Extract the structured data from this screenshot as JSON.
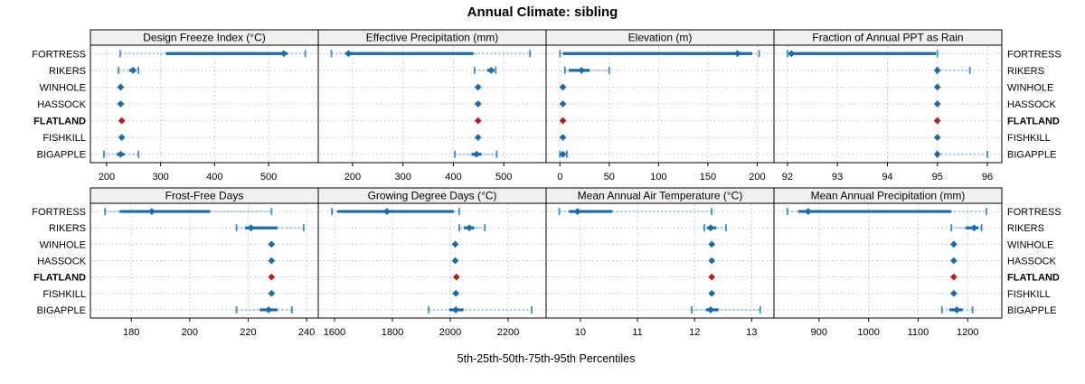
{
  "figure": {
    "title": "Annual Climate: sibling",
    "xlabel": "5th-25th-50th-75th-95th Percentiles"
  },
  "chart_data": {
    "type": "dotplot-trellis",
    "title": "Annual Climate: sibling",
    "xlabel": "5th-25th-50th-75th-95th Percentiles",
    "percentiles": [
      "5th",
      "25th",
      "50th",
      "75th",
      "95th"
    ],
    "sites": [
      "FORTRESS",
      "RIKERS",
      "WINHOLE",
      "HASSOCK",
      "FLATLAND",
      "FISHKILL",
      "BIGAPPLE"
    ],
    "highlight_site": "FLATLAND",
    "layout": {
      "rows": 2,
      "cols": 4,
      "grid": "dotted",
      "legend": "none",
      "site_labels": "both-sides"
    },
    "colors": {
      "marker": "#1a6ba6",
      "highlight_marker": "#b5201f",
      "box": "#1a6ba6",
      "whisker": "#a6cbe3",
      "cap": "#3d8cc4",
      "grid": "#bfbfbf",
      "border": "#000000",
      "header_bg": "#f0f0f0",
      "text": "#000000"
    },
    "panels": [
      {
        "title": "Design Freeze Index (°C)",
        "xlim": [
          170,
          592
        ],
        "ticks": [
          200,
          300,
          400,
          500
        ],
        "values": {
          "FORTRESS": [
            225,
            310,
            528,
            535,
            568
          ],
          "RIKERS": [
            222,
            242,
            249,
            254,
            259
          ],
          "WINHOLE": [
            223,
            225,
            226,
            227,
            229
          ],
          "HASSOCK": [
            223,
            225,
            226,
            227,
            229
          ],
          "FLATLAND": [
            228,
            228,
            228,
            228,
            228
          ],
          "FISHKILL": [
            225,
            227,
            228,
            229,
            231
          ],
          "BIGAPPLE": [
            195,
            219,
            226,
            233,
            259
          ]
        }
      },
      {
        "title": "Effective Precipitation (mm)",
        "xlim": [
          132,
          584
        ],
        "ticks": [
          200,
          300,
          400,
          500
        ],
        "values": {
          "FORTRESS": [
            158,
            186,
            192,
            440,
            552
          ],
          "RIKERS": [
            442,
            467,
            475,
            481,
            484
          ],
          "WINHOLE": [
            446,
            448,
            449,
            450,
            452
          ],
          "HASSOCK": [
            446,
            448,
            449,
            450,
            452
          ],
          "FLATLAND": [
            449,
            449,
            449,
            449,
            449
          ],
          "FISHKILL": [
            446,
            448,
            449,
            450,
            452
          ],
          "BIGAPPLE": [
            403,
            436,
            446,
            456,
            486
          ]
        }
      },
      {
        "title": "Elevation (m)",
        "xlim": [
          -14,
          217
        ],
        "ticks": [
          0,
          50,
          100,
          150,
          200
        ],
        "values": {
          "FORTRESS": [
            0,
            3,
            180,
            195,
            202
          ],
          "RIKERS": [
            5,
            9,
            22,
            30,
            50
          ],
          "WINHOLE": [
            2,
            2.5,
            3,
            3.5,
            4
          ],
          "HASSOCK": [
            2,
            2.5,
            3,
            3.5,
            4
          ],
          "FLATLAND": [
            3,
            3,
            3,
            3,
            3
          ],
          "FISHKILL": [
            2,
            2.5,
            3,
            3.5,
            4
          ],
          "BIGAPPLE": [
            0,
            1,
            3,
            5,
            7
          ]
        }
      },
      {
        "title": "Fraction of Annual PPT as Rain",
        "xlim": [
          91.73,
          96.29
        ],
        "ticks": [
          92,
          93,
          94,
          95,
          96
        ],
        "values": {
          "FORTRESS": [
            92.0,
            92.03,
            92.08,
            94.97,
            95.0
          ],
          "RIKERS": [
            94.99,
            94.995,
            95.0,
            95.01,
            95.65
          ],
          "WINHOLE": [
            95,
            95,
            95,
            95,
            95
          ],
          "HASSOCK": [
            95,
            95,
            95,
            95,
            95
          ],
          "FLATLAND": [
            95,
            95,
            95,
            95,
            95
          ],
          "FISHKILL": [
            95,
            95,
            95,
            95,
            95
          ],
          "BIGAPPLE": [
            94.99,
            94.995,
            95.0,
            95.02,
            96.0
          ]
        }
      },
      {
        "title": "Frost-Free Days",
        "xlim": [
          166,
          244
        ],
        "ticks": [
          180,
          200,
          220,
          240
        ],
        "values": {
          "FORTRESS": [
            171,
            176,
            187,
            207,
            228
          ],
          "RIKERS": [
            216,
            219,
            221,
            230,
            239
          ],
          "WINHOLE": [
            227.5,
            227.8,
            228,
            228.2,
            228.5
          ],
          "HASSOCK": [
            227.5,
            227.8,
            228,
            228.2,
            228.5
          ],
          "FLATLAND": [
            228,
            228,
            228,
            228,
            228
          ],
          "FISHKILL": [
            227.5,
            227.8,
            228,
            228.2,
            228.5
          ],
          "BIGAPPLE": [
            216,
            224,
            227,
            230,
            235
          ]
        }
      },
      {
        "title": "Growing Degree Days (°C)",
        "xlim": [
          1544,
          2331
        ],
        "ticks": [
          1600,
          1800,
          2000,
          2200
        ],
        "values": {
          "FORTRESS": [
            1591,
            1610,
            1781,
            2012,
            2031
          ],
          "RIKERS": [
            2031,
            2047,
            2066,
            2083,
            2119
          ],
          "WINHOLE": [
            2012,
            2015,
            2017,
            2019,
            2022
          ],
          "HASSOCK": [
            2012,
            2015,
            2017,
            2019,
            2022
          ],
          "FLATLAND": [
            2021,
            2021,
            2021,
            2021,
            2021
          ],
          "FISHKILL": [
            2014,
            2017,
            2019,
            2021,
            2024
          ],
          "BIGAPPLE": [
            1925,
            1996,
            2019,
            2046,
            2281
          ]
        }
      },
      {
        "title": "Mean Annual Air Temperature (°C)",
        "xlim": [
          9.4,
          13.39
        ],
        "ticks": [
          10,
          11,
          12,
          13
        ],
        "values": {
          "FORTRESS": [
            9.63,
            9.8,
            9.95,
            10.56,
            12.3
          ],
          "RIKERS": [
            12.17,
            12.22,
            12.28,
            12.38,
            12.55
          ],
          "WINHOLE": [
            12.28,
            12.29,
            12.3,
            12.31,
            12.32
          ],
          "HASSOCK": [
            12.28,
            12.29,
            12.3,
            12.31,
            12.32
          ],
          "FLATLAND": [
            12.3,
            12.3,
            12.3,
            12.3,
            12.3
          ],
          "FISHKILL": [
            12.28,
            12.29,
            12.3,
            12.31,
            12.32
          ],
          "BIGAPPLE": [
            11.95,
            12.2,
            12.28,
            12.42,
            13.15
          ]
        }
      },
      {
        "title": "Mean Annual Precipitation (mm)",
        "xlim": [
          809,
          1269
        ],
        "ticks": [
          900,
          1000,
          1100,
          1200
        ],
        "values": {
          "FORTRESS": [
            836,
            858,
            878,
            1167,
            1238
          ],
          "RIKERS": [
            1167,
            1196,
            1213,
            1222,
            1228
          ],
          "WINHOLE": [
            1169,
            1170.5,
            1172,
            1173.5,
            1175
          ],
          "HASSOCK": [
            1169,
            1170.5,
            1172,
            1173.5,
            1175
          ],
          "FLATLAND": [
            1172,
            1172,
            1172,
            1172,
            1172
          ],
          "FISHKILL": [
            1169,
            1170.5,
            1172,
            1173.5,
            1175
          ],
          "BIGAPPLE": [
            1148,
            1163,
            1178,
            1190,
            1210
          ]
        }
      }
    ]
  }
}
